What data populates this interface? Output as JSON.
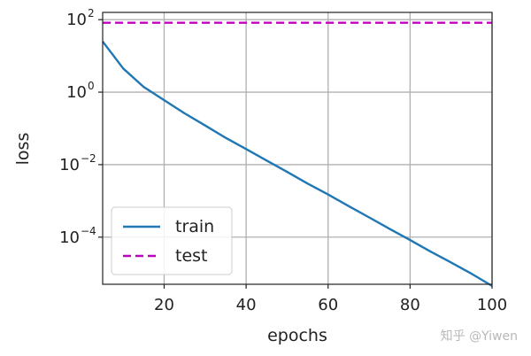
{
  "chart_data": {
    "type": "line",
    "xlabel": "epochs",
    "ylabel": "loss",
    "xlim": [
      5,
      100
    ],
    "ylim_log10": [
      -5.3,
      2.2
    ],
    "y_scale": "log",
    "grid": true,
    "legend_placement": "lower-left",
    "x_ticks": [
      {
        "value": 20,
        "label": "20"
      },
      {
        "value": 40,
        "label": "40"
      },
      {
        "value": 60,
        "label": "60"
      },
      {
        "value": 80,
        "label": "80"
      },
      {
        "value": 100,
        "label": "100"
      }
    ],
    "y_ticks": [
      {
        "value": 100,
        "base": "10",
        "exp": "2"
      },
      {
        "value": 1,
        "base": "10",
        "exp": "0"
      },
      {
        "value": 0.01,
        "base": "10",
        "exp": "−2"
      },
      {
        "value": 0.0001,
        "base": "10",
        "exp": "−4"
      }
    ],
    "series": [
      {
        "name": "train",
        "color": "#1f77b4",
        "style": "solid",
        "x": [
          5,
          10,
          15,
          20,
          25,
          30,
          35,
          40,
          45,
          50,
          55,
          60,
          65,
          70,
          75,
          80,
          85,
          90,
          95,
          100
        ],
        "y": [
          25,
          4.5,
          1.4,
          0.6,
          0.26,
          0.12,
          0.055,
          0.027,
          0.013,
          0.0063,
          0.003,
          0.0015,
          0.00072,
          0.00035,
          0.00017,
          8.3e-05,
          4e-05,
          2e-05,
          9.8e-06,
          4.5e-06
        ]
      },
      {
        "name": "test",
        "color": "#bf00bf",
        "style": "dashed",
        "x": [
          5,
          100
        ],
        "y": [
          82,
          82
        ]
      }
    ]
  },
  "watermark": "知乎 @Yiwen"
}
